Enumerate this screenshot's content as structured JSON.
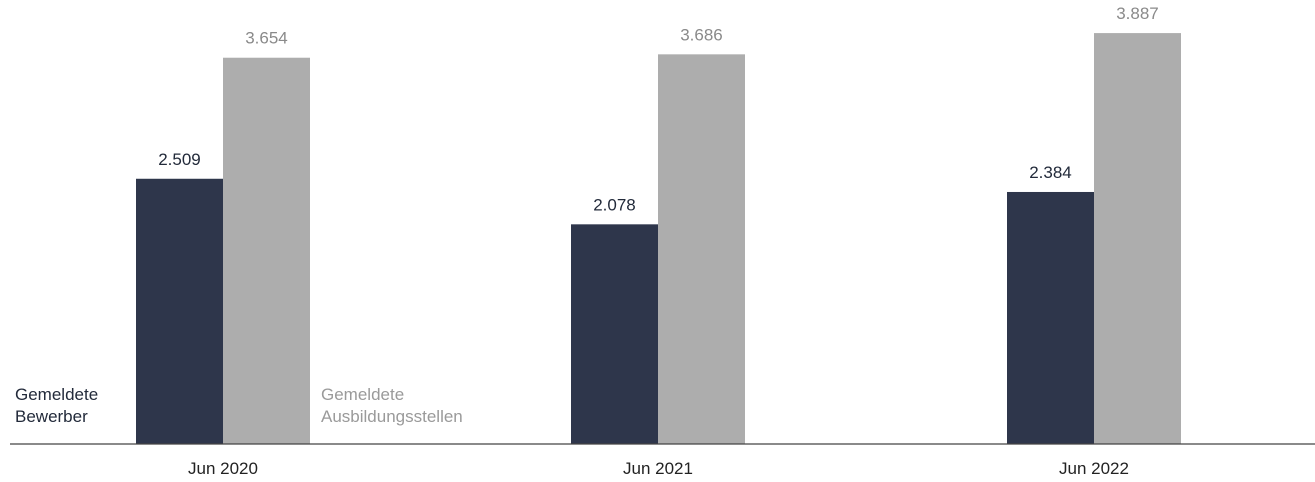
{
  "chart_data": {
    "type": "bar",
    "categories": [
      "Jun 2020",
      "Jun 2021",
      "Jun 2022"
    ],
    "series": [
      {
        "name": "Gemeldete Bewerber",
        "name_lines": [
          "Gemeldete",
          "Bewerber"
        ],
        "values": [
          2509,
          2078,
          2384
        ],
        "labels": [
          "2.509",
          "2.078",
          "2.384"
        ],
        "color": "#2e364b"
      },
      {
        "name": "Gemeldete Ausbildungsstellen",
        "name_lines": [
          "Gemeldete",
          "Ausbildungsstellen"
        ],
        "values": [
          3654,
          3686,
          3887
        ],
        "labels": [
          "3.654",
          "3.686",
          "3.887"
        ],
        "color": "#adadad"
      }
    ],
    "ylim": [
      0,
      4200
    ],
    "grid": false,
    "legend": "inline-below-first-group"
  }
}
